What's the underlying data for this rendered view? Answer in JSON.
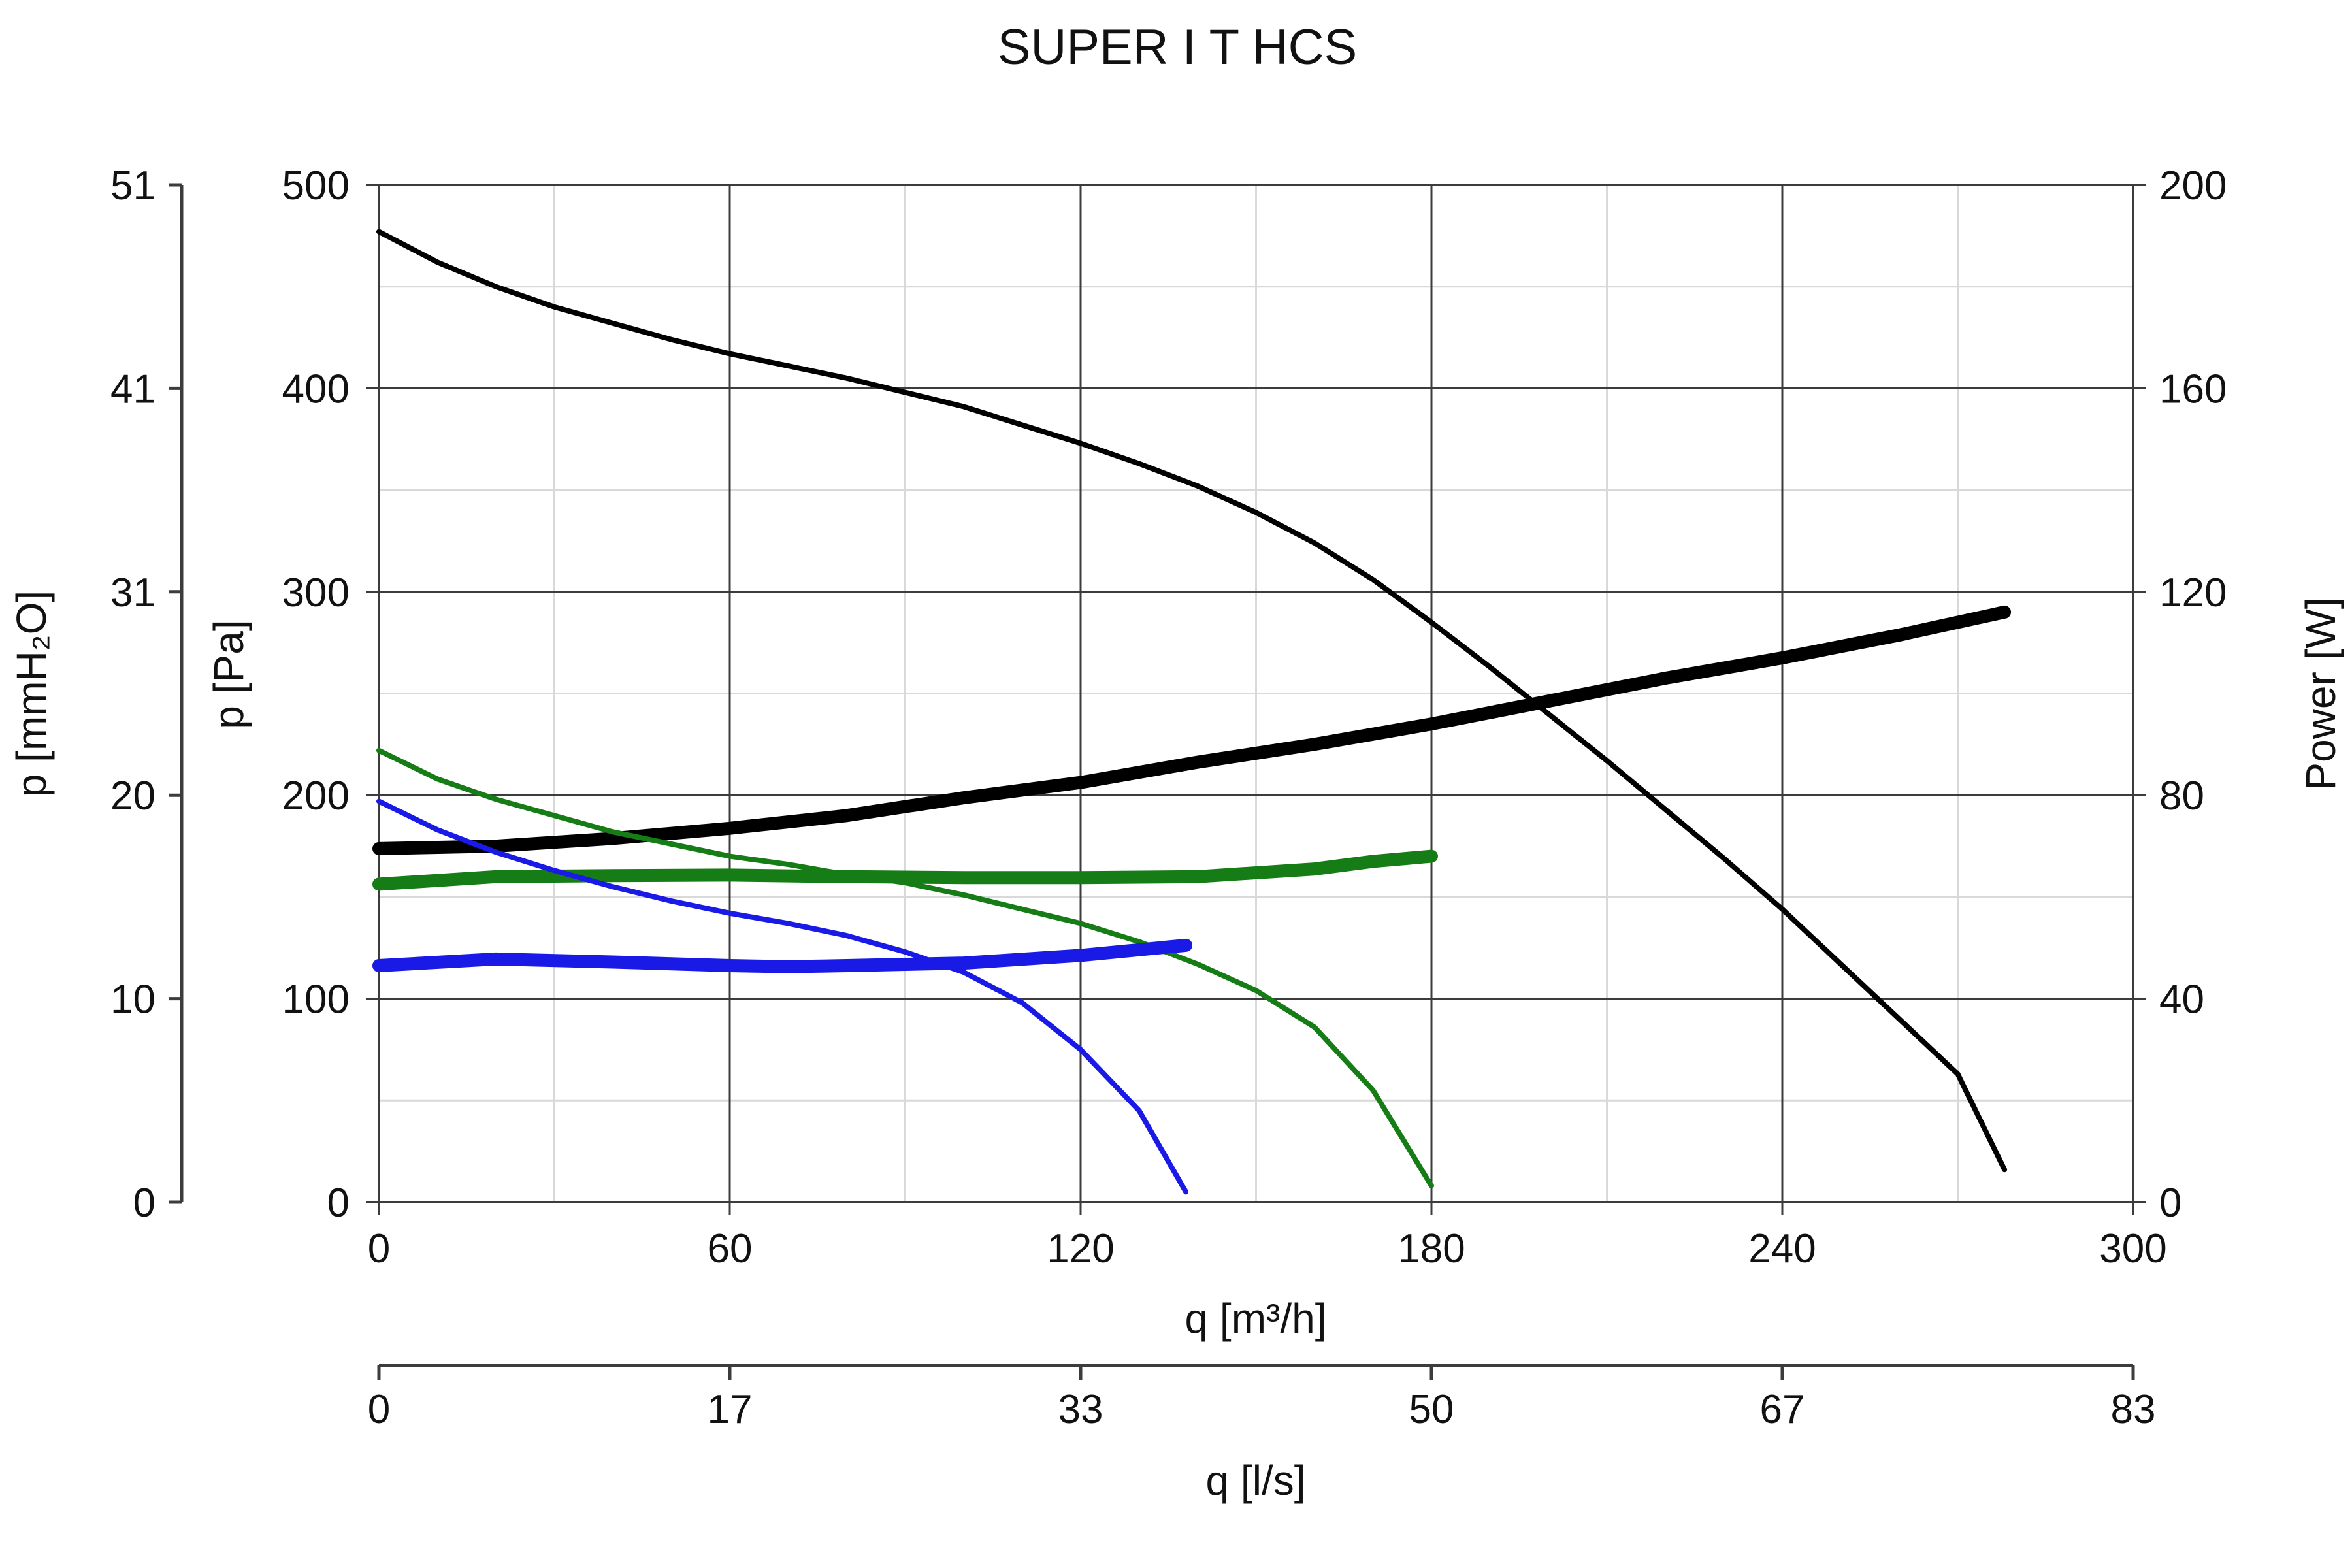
{
  "chart_data": {
    "type": "line",
    "title": "SUPER I T HCS",
    "x": {
      "label": "q [m³/h]",
      "range": [
        0,
        300
      ],
      "ticks": [
        "0",
        "60",
        "120",
        "180",
        "240",
        "300"
      ]
    },
    "x2": {
      "label": "q [l/s]",
      "ticks": [
        "0",
        "17",
        "33",
        "50",
        "67",
        "83"
      ]
    },
    "y": {
      "label": "p [Pa]",
      "range": [
        0,
        500
      ],
      "ticks": [
        "0",
        "100",
        "200",
        "300",
        "400",
        "500"
      ]
    },
    "y_outer": {
      "label": "p [mmH₂O]",
      "ticks": [
        "0",
        "10",
        "20",
        "31",
        "41",
        "51"
      ]
    },
    "y2": {
      "label": "Power [W]",
      "range": [
        0,
        200
      ],
      "ticks": [
        "0",
        "40",
        "80",
        "120",
        "160",
        "200"
      ]
    },
    "grid": true,
    "series": [
      {
        "color": "#000000",
        "axis": "y",
        "kind": "pressure",
        "points": [
          [
            0,
            477
          ],
          [
            10,
            462
          ],
          [
            20,
            450
          ],
          [
            30,
            440
          ],
          [
            40,
            432
          ],
          [
            50,
            424
          ],
          [
            60,
            417
          ],
          [
            70,
            411
          ],
          [
            80,
            405
          ],
          [
            90,
            398
          ],
          [
            100,
            391
          ],
          [
            110,
            382
          ],
          [
            120,
            373
          ],
          [
            130,
            363
          ],
          [
            140,
            352
          ],
          [
            150,
            339
          ],
          [
            160,
            324
          ],
          [
            170,
            306
          ],
          [
            180,
            285
          ],
          [
            190,
            263
          ],
          [
            200,
            240
          ],
          [
            210,
            217
          ],
          [
            220,
            193
          ],
          [
            230,
            169
          ],
          [
            240,
            144
          ],
          [
            250,
            117
          ],
          [
            260,
            90
          ],
          [
            270,
            63
          ],
          [
            278,
            16
          ]
        ]
      },
      {
        "color": "#000000",
        "axis": "y2",
        "kind": "power",
        "points": [
          [
            0,
            69.5
          ],
          [
            20,
            70
          ],
          [
            40,
            71.5
          ],
          [
            60,
            73.5
          ],
          [
            80,
            76
          ],
          [
            100,
            79.5
          ],
          [
            120,
            82.5
          ],
          [
            140,
            86.5
          ],
          [
            160,
            90
          ],
          [
            180,
            94
          ],
          [
            200,
            98.5
          ],
          [
            220,
            103
          ],
          [
            240,
            107
          ],
          [
            260,
            111.5
          ],
          [
            278,
            116
          ]
        ]
      },
      {
        "color": "#167d16",
        "axis": "y",
        "kind": "pressure",
        "points": [
          [
            0,
            222
          ],
          [
            10,
            208
          ],
          [
            20,
            198
          ],
          [
            30,
            190
          ],
          [
            40,
            182
          ],
          [
            50,
            176
          ],
          [
            60,
            170
          ],
          [
            70,
            166
          ],
          [
            80,
            161
          ],
          [
            90,
            157
          ],
          [
            100,
            151
          ],
          [
            110,
            144
          ],
          [
            120,
            137
          ],
          [
            130,
            128
          ],
          [
            140,
            117
          ],
          [
            150,
            104
          ],
          [
            160,
            86
          ],
          [
            170,
            55
          ],
          [
            180,
            8
          ]
        ]
      },
      {
        "color": "#167d16",
        "axis": "y2",
        "kind": "power",
        "points": [
          [
            0,
            62.5
          ],
          [
            20,
            64
          ],
          [
            40,
            64.2
          ],
          [
            60,
            64.3
          ],
          [
            80,
            64
          ],
          [
            100,
            63.8
          ],
          [
            120,
            63.8
          ],
          [
            140,
            64
          ],
          [
            160,
            65.5
          ],
          [
            170,
            67
          ],
          [
            180,
            68
          ]
        ]
      },
      {
        "color": "#1a1ae6",
        "axis": "y",
        "kind": "pressure",
        "points": [
          [
            0,
            197
          ],
          [
            10,
            183
          ],
          [
            20,
            172
          ],
          [
            30,
            163
          ],
          [
            40,
            155
          ],
          [
            50,
            148
          ],
          [
            60,
            142
          ],
          [
            70,
            137
          ],
          [
            80,
            131
          ],
          [
            90,
            123
          ],
          [
            100,
            113
          ],
          [
            110,
            98
          ],
          [
            120,
            75
          ],
          [
            130,
            45
          ],
          [
            138,
            5
          ]
        ]
      },
      {
        "color": "#1a1ae6",
        "axis": "y2",
        "kind": "power",
        "points": [
          [
            0,
            46.5
          ],
          [
            20,
            47.8
          ],
          [
            40,
            47.2
          ],
          [
            60,
            46.5
          ],
          [
            70,
            46.3
          ],
          [
            80,
            46.5
          ],
          [
            100,
            47
          ],
          [
            120,
            48.5
          ],
          [
            138,
            50.5
          ]
        ]
      }
    ]
  }
}
